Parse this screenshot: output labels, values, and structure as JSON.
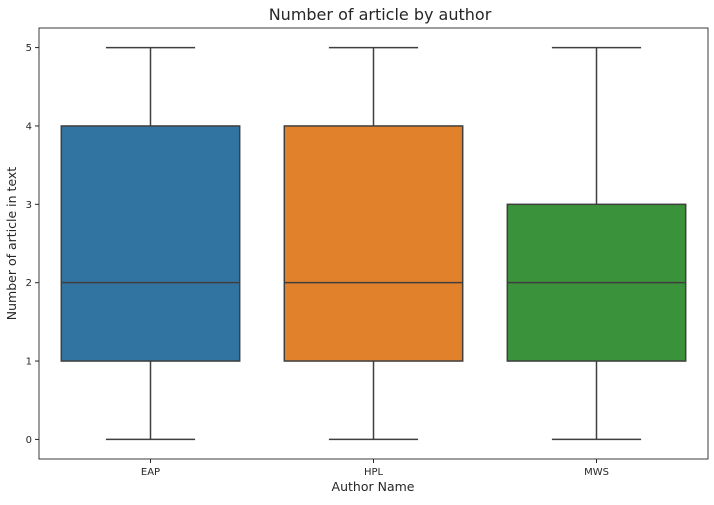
{
  "chart_data": {
    "type": "box",
    "title": "Number of article by author",
    "xlabel": "Author Name",
    "ylabel": "Number of article in text",
    "categories": [
      "EAP",
      "HPL",
      "MWS"
    ],
    "boxes": [
      {
        "category": "EAP",
        "whisker_low": 0,
        "q1": 1,
        "median": 2,
        "q3": 4,
        "whisker_high": 5,
        "color": "#3274a1"
      },
      {
        "category": "HPL",
        "whisker_low": 0,
        "q1": 1,
        "median": 2,
        "q3": 4,
        "whisker_high": 5,
        "color": "#e1812c"
      },
      {
        "category": "MWS",
        "whisker_low": 0,
        "q1": 1,
        "median": 2,
        "q3": 3,
        "whisker_high": 5,
        "color": "#3a923a"
      }
    ],
    "y_ticks": [
      0,
      1,
      2,
      3,
      4,
      5
    ],
    "ylim": [
      -0.25,
      5.25
    ],
    "grid": false,
    "line_color": "#3f3f3f"
  }
}
